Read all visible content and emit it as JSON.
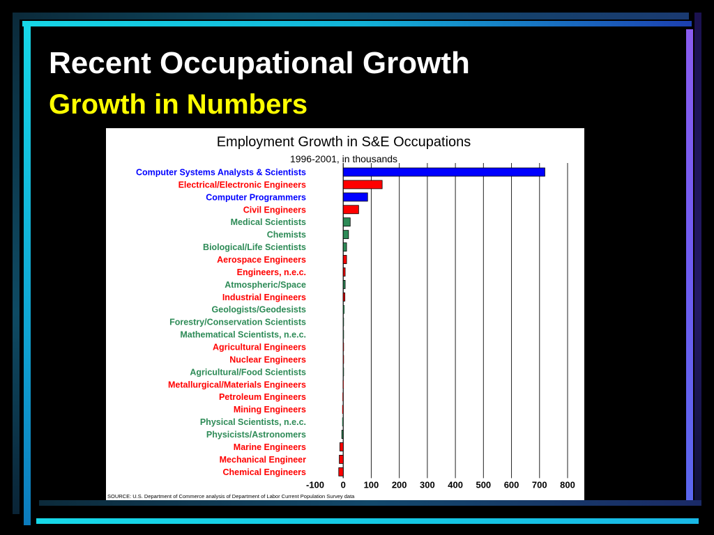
{
  "slide": {
    "title": "Recent Occupational Growth",
    "subtitle": "Growth in Numbers"
  },
  "colors": {
    "background": "#000000",
    "title": "#ffffff",
    "subtitle": "#ffff00",
    "computer": "#0000ff",
    "engineering": "#ff0000",
    "science": "#2e8b57"
  },
  "chart_data": {
    "type": "bar",
    "orientation": "horizontal",
    "title": "Employment Growth in S&E Occupations",
    "subtitle": "1996-2001, in thousands",
    "xlabel": "",
    "ylabel": "",
    "xlim": [
      -100,
      800
    ],
    "x_ticks": [
      "-100",
      "0",
      "100",
      "200",
      "300",
      "400",
      "500",
      "600",
      "700",
      "800"
    ],
    "grid": "vertical",
    "legend": "none",
    "categories": [
      "Computer Systems Analysts & Scientists",
      "Electrical/Electronic Engineers",
      "Computer Programmers",
      "Civil Engineers",
      "Medical Scientists",
      "Chemists",
      "Biological/Life Scientists",
      "Aerospace Engineers",
      "Engineers, n.e.c.",
      "Atmospheric/Space",
      "Industrial Engineers",
      "Geologists/Geodesists",
      "Forestry/Conservation Scientists",
      "Mathematical Scientists, n.e.c.",
      "Agricultural Engineers",
      "Nuclear Engineers",
      "Agricultural/Food Scientists",
      "Metallurgical/Materials Engineers",
      "Petroleum Engineers",
      "Mining Engineers",
      "Physical Scientists, n.e.c.",
      "Physicists/Astronomers",
      "Marine Engineers",
      "Mechanical Engineer",
      "Chemical Engineers"
    ],
    "values": [
      719,
      139,
      87,
      55,
      25,
      19,
      12,
      12,
      7,
      7,
      6,
      4,
      1,
      0,
      0,
      0,
      0,
      -1,
      -2,
      -3,
      -3,
      -5,
      -12,
      -14,
      -16
    ],
    "groups": [
      "computer",
      "engineering",
      "computer",
      "engineering",
      "science",
      "science",
      "science",
      "engineering",
      "engineering",
      "science",
      "engineering",
      "science",
      "science",
      "science",
      "engineering",
      "engineering",
      "science",
      "engineering",
      "engineering",
      "engineering",
      "science",
      "science",
      "engineering",
      "engineering",
      "engineering"
    ],
    "source": "SOURCE: U.S. Department of Commerce analysis of Department of Labor Current Population Survey data"
  }
}
